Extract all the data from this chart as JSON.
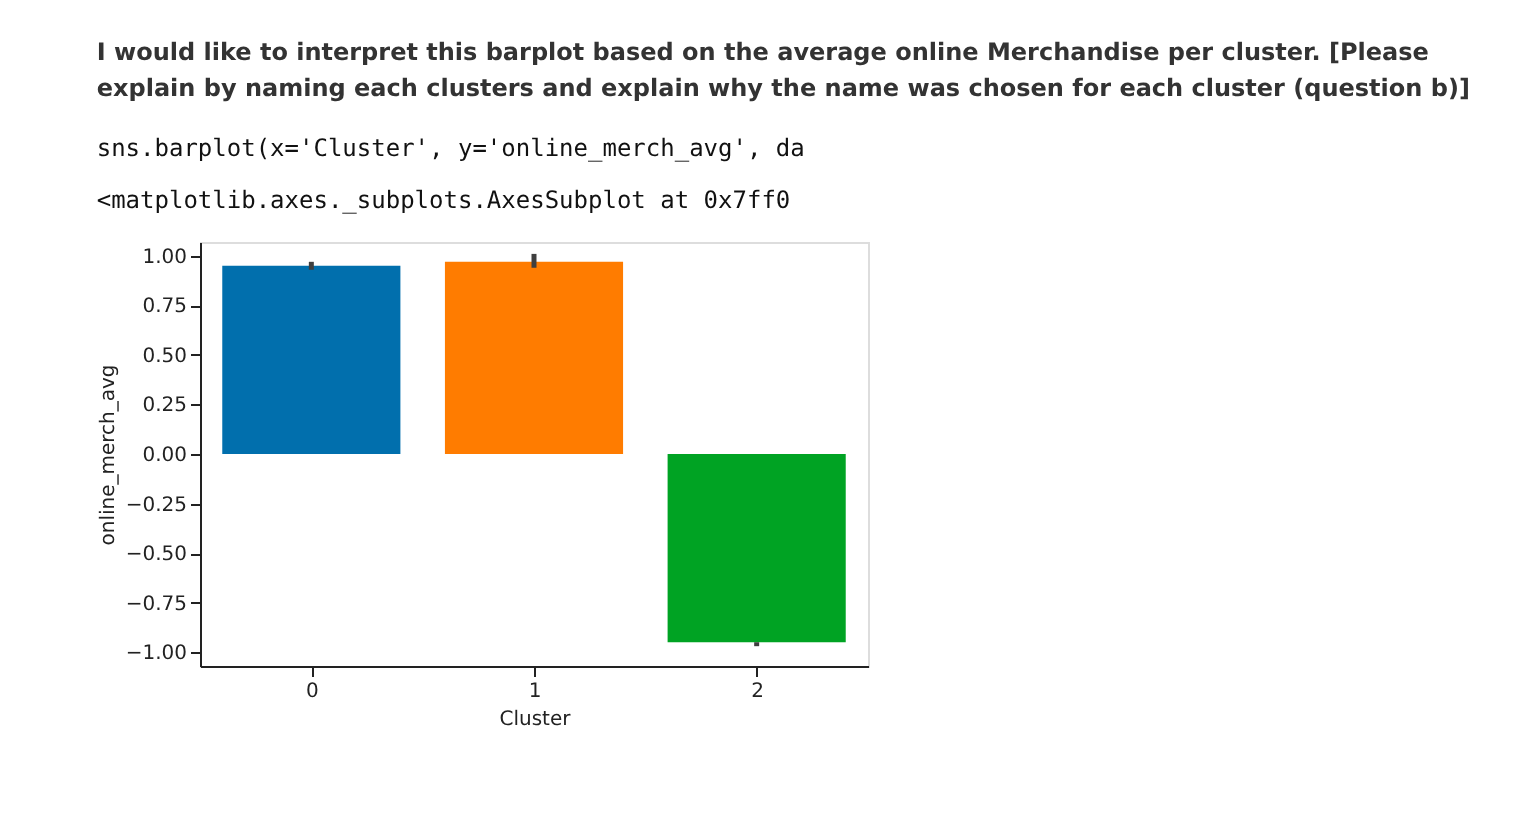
{
  "chart_data": {
    "type": "bar",
    "title": "I would like to interpret this barplot based on the average online Merchandise per cluster. [Please explain by naming each clusters and explain why the name was chosen for each cluster (question b)]",
    "annotations": [
      "sns.barplot(x='Cluster', y='online_merch_avg', da",
      "<matplotlib.axes._subplots.AxesSubplot at 0x7ff0"
    ],
    "xlabel": "Cluster",
    "ylabel": "online_merch_avg",
    "categories": [
      "0",
      "1",
      "2"
    ],
    "values": [
      0.95,
      0.97,
      -0.95
    ],
    "colors": [
      "#016fad",
      "#ff7c00",
      "#00a323"
    ],
    "errors": [
      [
        0.93,
        0.97
      ],
      [
        0.94,
        1.01
      ],
      [
        -0.97,
        -0.95
      ]
    ],
    "ylim": [
      -1.07,
      1.07
    ],
    "yticks": [
      {
        "value": -1,
        "label": "−1.00"
      },
      {
        "value": -0.75,
        "label": "−0.75"
      },
      {
        "value": -0.5,
        "label": "−0.50"
      },
      {
        "value": -0.25,
        "label": "−0.25"
      },
      {
        "value": 0,
        "label": "0.00"
      },
      {
        "value": 0.25,
        "label": "0.25"
      },
      {
        "value": 0.5,
        "label": "0.50"
      },
      {
        "value": 0.75,
        "label": "0.75"
      },
      {
        "value": 1,
        "label": "1.00"
      }
    ],
    "grid": false
  }
}
